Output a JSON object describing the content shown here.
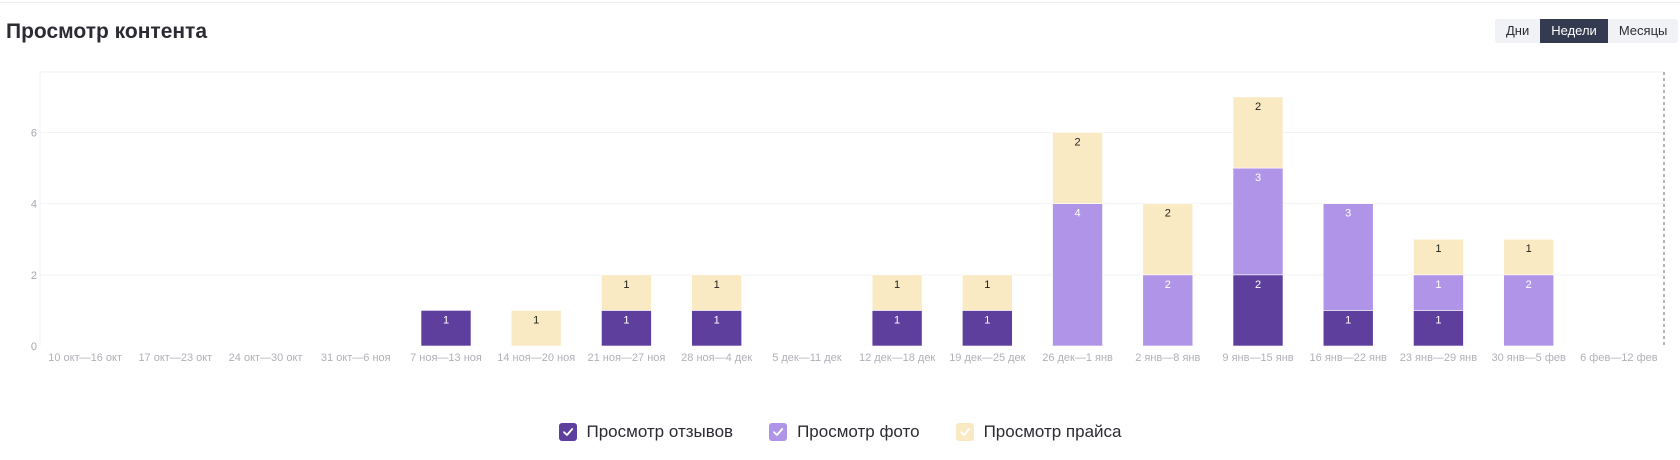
{
  "header": {
    "title": "Просмотр контента"
  },
  "period_switch": {
    "options": [
      "Дни",
      "Недели",
      "Месяцы"
    ],
    "selected": "Недели"
  },
  "chart_data": {
    "type": "bar",
    "stacked": true,
    "title": "",
    "xlabel": "",
    "ylabel": "",
    "ylim": [
      0,
      7.7
    ],
    "yticks": [
      0,
      2,
      4,
      6
    ],
    "grid": true,
    "legend_position": "bottom-center",
    "categories": [
      "10 окт—16 окт",
      "17 окт—23 окт",
      "24 окт—30 окт",
      "31 окт—6 ноя",
      "7 ноя—13 ноя",
      "14 ноя—20 ноя",
      "21 ноя—27 ноя",
      "28 ноя—4 дек",
      "5 дек—11 дек",
      "12 дек—18 дек",
      "19 дек—25 дек",
      "26 дек—1 янв",
      "2 янв—8 янв",
      "9 янв—15 янв",
      "16 янв—22 янв",
      "23 янв—29 янв",
      "30 янв—5 фев",
      "6 фев—12 фев"
    ],
    "series": [
      {
        "name": "Просмотр отзывов",
        "color": "#5e3f9d",
        "label_color": "#ffffff",
        "values": [
          0,
          0,
          0,
          0,
          1,
          0,
          1,
          1,
          0,
          1,
          1,
          0,
          0,
          2,
          1,
          1,
          0,
          0
        ]
      },
      {
        "name": "Просмотр фото",
        "color": "#b094e8",
        "label_color": "#ffffff",
        "values": [
          0,
          0,
          0,
          0,
          0,
          0,
          0,
          0,
          0,
          0,
          0,
          4,
          2,
          3,
          3,
          1,
          2,
          0
        ]
      },
      {
        "name": "Просмотр прайса",
        "color": "#faeac4",
        "label_color": "#1e1e1e",
        "values": [
          0,
          0,
          0,
          0,
          0,
          1,
          1,
          1,
          0,
          1,
          1,
          2,
          2,
          2,
          0,
          1,
          1,
          0
        ]
      }
    ]
  }
}
